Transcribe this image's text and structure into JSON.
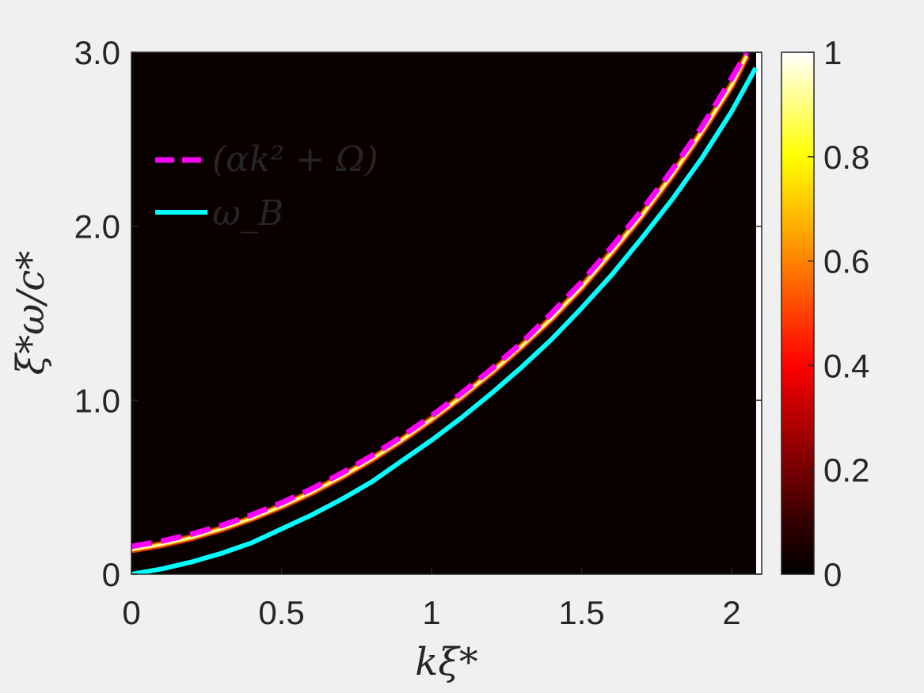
{
  "chart_data": {
    "type": "heatmap",
    "xlabel": "kξ*",
    "ylabel": "ξ*ω/c*",
    "xlim": [
      0,
      2.1
    ],
    "ylim": [
      0,
      3.0
    ],
    "xticks": [
      0,
      0.5,
      1,
      1.5,
      2
    ],
    "xtick_labels": [
      "0",
      "0.5",
      "1",
      "1.5",
      "2"
    ],
    "yticks": [
      0,
      1.0,
      2.0,
      3.0
    ],
    "ytick_labels": [
      "0",
      "1.0",
      "2.0",
      "3.0"
    ],
    "colorbar": {
      "range": [
        0,
        1
      ],
      "ticks": [
        0,
        0.2,
        0.4,
        0.6,
        0.8,
        1
      ],
      "tick_labels": [
        "0",
        "0.2",
        "0.4",
        "0.6",
        "0.8",
        "1"
      ],
      "colormap": "hot"
    },
    "background_color": "#0a0000",
    "series": [
      {
        "name": "(αk² + Ω)",
        "style": "dashed",
        "color": "#ff00ff",
        "x": [
          0,
          0.1,
          0.2,
          0.3,
          0.4,
          0.5,
          0.6,
          0.7,
          0.8,
          0.9,
          1.0,
          1.1,
          1.2,
          1.3,
          1.4,
          1.5,
          1.6,
          1.7,
          1.8,
          1.9,
          2.0,
          2.05
        ],
        "y": [
          0.16,
          0.19,
          0.23,
          0.28,
          0.34,
          0.41,
          0.49,
          0.58,
          0.68,
          0.79,
          0.91,
          1.04,
          1.18,
          1.33,
          1.5,
          1.68,
          1.88,
          2.09,
          2.32,
          2.57,
          2.85,
          3.0
        ]
      },
      {
        "name": "ω_B",
        "style": "solid",
        "color": "#00ffff",
        "x": [
          0,
          0.1,
          0.2,
          0.3,
          0.4,
          0.5,
          0.6,
          0.7,
          0.8,
          0.9,
          1.0,
          1.1,
          1.2,
          1.3,
          1.4,
          1.5,
          1.6,
          1.7,
          1.8,
          1.9,
          2.0,
          2.08
        ],
        "y": [
          0.0,
          0.03,
          0.07,
          0.12,
          0.18,
          0.26,
          0.34,
          0.43,
          0.53,
          0.65,
          0.77,
          0.9,
          1.04,
          1.19,
          1.35,
          1.53,
          1.72,
          1.93,
          2.15,
          2.39,
          2.66,
          2.91
        ]
      },
      {
        "name": "",
        "style": "heat-ridge",
        "color": "#ffff80",
        "x": [
          0,
          0.1,
          0.2,
          0.3,
          0.4,
          0.5,
          0.6,
          0.7,
          0.8,
          0.9,
          1.0,
          1.1,
          1.2,
          1.3,
          1.4,
          1.5,
          1.6,
          1.7,
          1.8,
          1.9,
          2.0,
          2.05
        ],
        "y": [
          0.14,
          0.17,
          0.21,
          0.26,
          0.32,
          0.39,
          0.47,
          0.56,
          0.66,
          0.77,
          0.89,
          1.02,
          1.16,
          1.31,
          1.47,
          1.65,
          1.85,
          2.06,
          2.29,
          2.54,
          2.81,
          2.98
        ]
      }
    ],
    "legend": {
      "entries": [
        "(αk² + Ω)",
        "ω_B"
      ],
      "placement": "top-left"
    }
  }
}
